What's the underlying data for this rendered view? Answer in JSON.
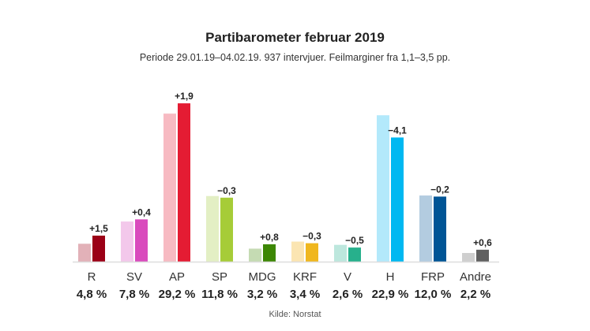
{
  "chart_data": {
    "type": "bar",
    "title": "Partibarometer februar 2019",
    "subtitle": "Periode 29.01.19–04.02.19. 937 intervjuer. Feilmarginer fra 1,1–3,5 pp.",
    "source": "Kilde: Norstat",
    "categories": [
      "R",
      "SV",
      "AP",
      "SP",
      "MDG",
      "KRF",
      "V",
      "H",
      "FRP",
      "Andre"
    ],
    "values": [
      4.8,
      7.8,
      29.2,
      11.8,
      3.2,
      3.4,
      2.6,
      22.9,
      12.0,
      2.2
    ],
    "value_labels": [
      "4,8 %",
      "7,8 %",
      "29,2 %",
      "11,8 %",
      "3,2 %",
      "3,4 %",
      "2,6 %",
      "22,9 %",
      "12,0 %",
      "2,2 %"
    ],
    "changes": [
      1.5,
      0.4,
      1.9,
      -0.3,
      0.8,
      -0.3,
      -0.5,
      -4.1,
      -0.2,
      0.6
    ],
    "change_labels": [
      "+1,5",
      "+0,4",
      "+1,9",
      "−0,3",
      "+0,8",
      "−0,3",
      "−0,5",
      "−4,1",
      "−0,2",
      "+0,6"
    ],
    "colors": [
      "#9b0016",
      "#d94bbd",
      "#e41c33",
      "#a6cc38",
      "#3d8705",
      "#f0b71e",
      "#27b08c",
      "#00b8f1",
      "#005596",
      "#606060"
    ],
    "previous_colors": [
      "#e2b1b8",
      "#f3c8eb",
      "#f7bac2",
      "#e3efc4",
      "#c5dbb3",
      "#fbe5b2",
      "#bde7dd",
      "#b3e9fb",
      "#b3cce0",
      "#cfcfcf"
    ],
    "ylim": [
      0,
      30
    ],
    "grid": false
  }
}
